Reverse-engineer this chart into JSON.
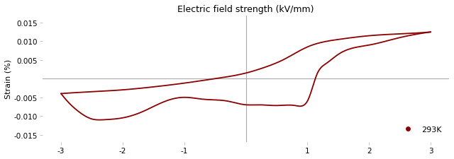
{
  "title": "Electric field strength (kV/mm)",
  "ylabel": "Strain (%)",
  "xlim": [
    -3.3,
    3.3
  ],
  "ylim": [
    -0.017,
    0.017
  ],
  "xticks": [
    -3,
    -2,
    -1,
    1,
    2,
    3
  ],
  "yticks": [
    -0.015,
    -0.01,
    -0.005,
    0.005,
    0.01,
    0.015
  ],
  "line_color": "#8B0000",
  "legend_label": "293K",
  "legend_color": "#8B0000",
  "background_color": "#ffffff",
  "upper_branch_e": [
    -3.0,
    -2.5,
    -2.0,
    -1.5,
    -1.0,
    -0.5,
    0.0,
    0.3,
    0.6,
    1.0,
    1.5,
    2.0,
    2.5,
    3.0
  ],
  "upper_branch_s": [
    -0.004,
    -0.0035,
    -0.003,
    -0.0022,
    -0.0012,
    0.0,
    0.0015,
    0.003,
    0.005,
    0.0085,
    0.0105,
    0.0115,
    0.012,
    0.0125
  ],
  "lower_branch_e": [
    3.0,
    2.8,
    2.5,
    2.0,
    1.5,
    1.3,
    1.15,
    1.05,
    1.0,
    0.95,
    0.8,
    0.5,
    0.2,
    0.0,
    -0.3,
    -0.7,
    -1.0,
    -1.3,
    -1.7,
    -2.0,
    -2.3,
    -2.5,
    -2.7,
    -2.9,
    -3.0
  ],
  "lower_branch_s": [
    0.0125,
    0.012,
    0.011,
    0.009,
    0.0065,
    0.004,
    0.001,
    -0.004,
    -0.006,
    -0.007,
    -0.0072,
    -0.0072,
    -0.007,
    -0.007,
    -0.006,
    -0.0055,
    -0.005,
    -0.006,
    -0.009,
    -0.0105,
    -0.011,
    -0.0108,
    -0.009,
    -0.006,
    -0.004
  ]
}
